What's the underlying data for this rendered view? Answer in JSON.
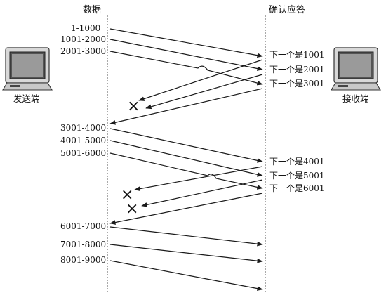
{
  "headers": {
    "data": "数据",
    "ack": "确认应答"
  },
  "sender": {
    "label": "发送端",
    "icon": "computer-icon"
  },
  "receiver": {
    "label": "接收端",
    "icon": "computer-icon"
  },
  "data_segments": [
    {
      "label": "1-1000"
    },
    {
      "label": "1001-2000"
    },
    {
      "label": "2001-3000"
    },
    {
      "label": "3001-4000"
    },
    {
      "label": "4001-5000"
    },
    {
      "label": "5001-6000"
    },
    {
      "label": "6001-7000"
    },
    {
      "label": "7001-8000"
    },
    {
      "label": "8001-9000"
    }
  ],
  "acks": [
    {
      "label": "下一个是1001"
    },
    {
      "label": "下一个是2001"
    },
    {
      "label": "下一个是3001"
    },
    {
      "label": "下一个是4001"
    },
    {
      "label": "下一个是5001"
    },
    {
      "label": "下一个是6001"
    }
  ],
  "loss_marker": "×"
}
